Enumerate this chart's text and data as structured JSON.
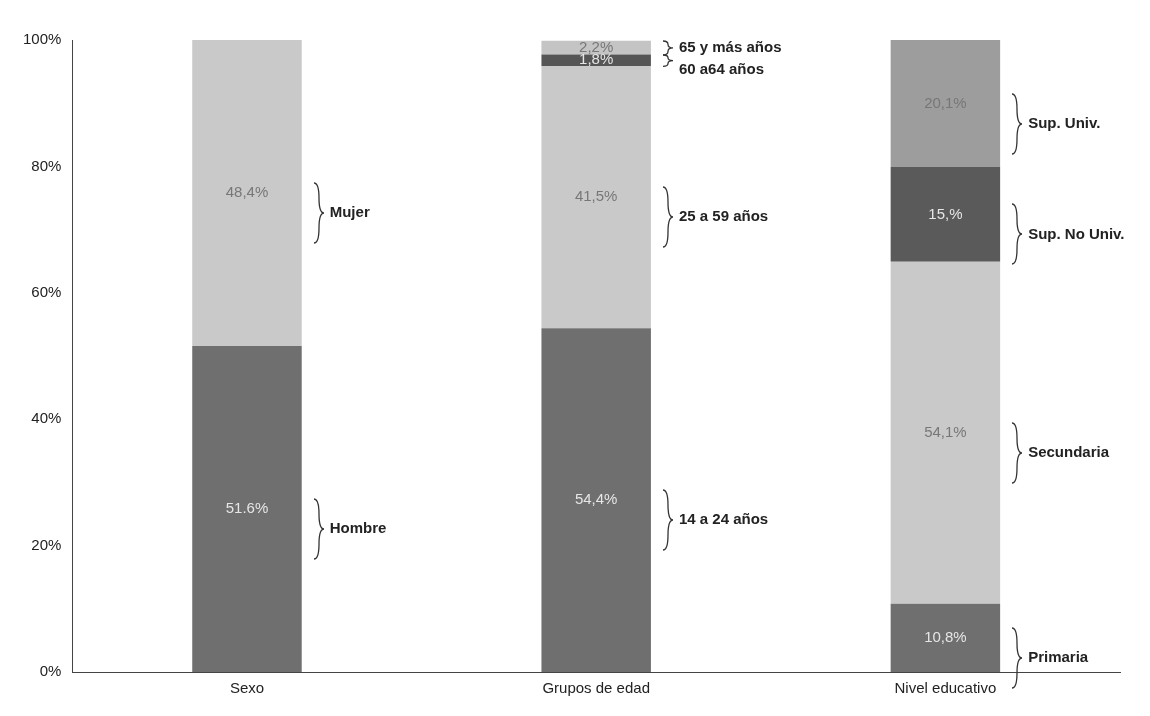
{
  "chart_data": {
    "type": "bar",
    "stacked": true,
    "categories": [
      "Sexo",
      "Grupos de edad",
      "Nivel educativo"
    ],
    "ylim": [
      0,
      100
    ],
    "yticks": [
      {
        "value": 0,
        "label": "0%"
      },
      {
        "value": 20,
        "label": "20%"
      },
      {
        "value": 40,
        "label": "40%"
      },
      {
        "value": 60,
        "label": "60%"
      },
      {
        "value": 80,
        "label": "80%"
      },
      {
        "value": 100,
        "label": "100%"
      }
    ],
    "grid": false,
    "legend": false,
    "series": [
      {
        "name": "Hombre",
        "color": "#6f6f6f",
        "values": [
          51.6,
          null,
          null
        ],
        "value_labels": [
          "51.6%",
          null,
          null
        ]
      },
      {
        "name": "Mujer",
        "color": "#c9c9c9",
        "values": [
          48.4,
          null,
          null
        ],
        "value_labels": [
          "48,4%",
          null,
          null
        ]
      },
      {
        "name": "14 a 24 años",
        "color": "#6f6f6f",
        "values": [
          null,
          54.4,
          null
        ],
        "value_labels": [
          null,
          "54,4%",
          null
        ]
      },
      {
        "name": "25 a 59 años",
        "color": "#c9c9c9",
        "values": [
          null,
          41.5,
          null
        ],
        "value_labels": [
          null,
          "41,5%",
          null
        ]
      },
      {
        "name": "60 a64 años",
        "color": "#555555",
        "values": [
          null,
          1.8,
          null
        ],
        "value_labels": [
          null,
          "1,8%",
          null
        ]
      },
      {
        "name": "65 y más años",
        "color": "#c4c4c4",
        "values": [
          null,
          2.2,
          null
        ],
        "value_labels": [
          null,
          "2,2%",
          null
        ]
      },
      {
        "name": "Primaria",
        "color": "#6f6f6f",
        "values": [
          null,
          null,
          10.8
        ],
        "value_labels": [
          null,
          null,
          "10,8%"
        ]
      },
      {
        "name": "Secundaria",
        "color": "#c9c9c9",
        "values": [
          null,
          null,
          54.1
        ],
        "value_labels": [
          null,
          null,
          "54,1%"
        ]
      },
      {
        "name": "Sup. No Univ.",
        "color": "#5a5a5a",
        "values": [
          null,
          null,
          15
        ],
        "value_labels": [
          null,
          null,
          "15,%"
        ]
      },
      {
        "name": "Sup. Univ.",
        "color": "#9d9d9d",
        "values": [
          null,
          null,
          20.1
        ],
        "value_labels": [
          null,
          null,
          "20,1%"
        ]
      }
    ]
  }
}
